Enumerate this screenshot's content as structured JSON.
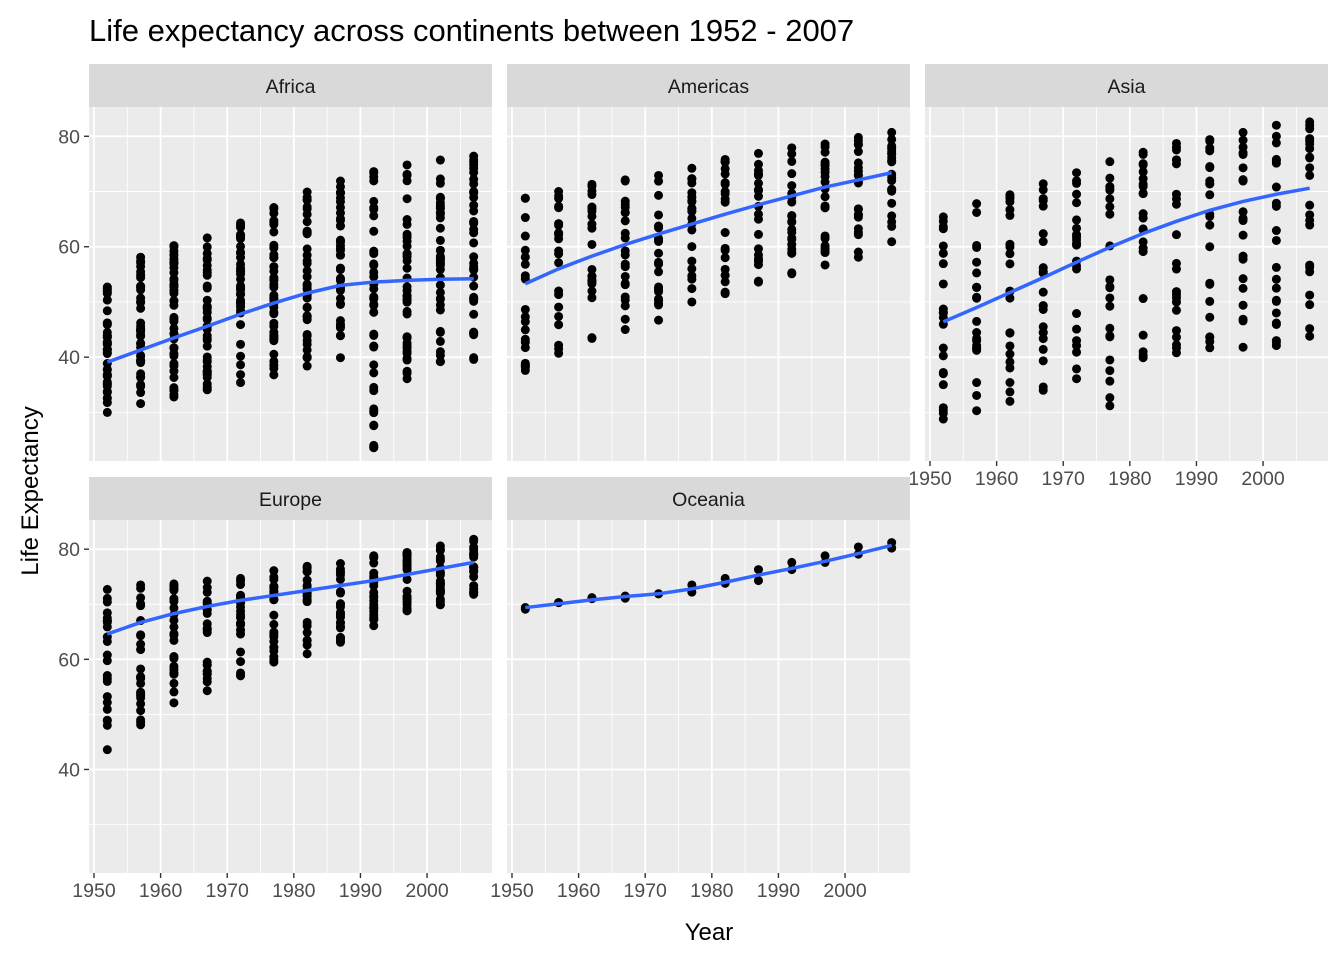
{
  "chart_data": {
    "type": "scatter",
    "title": "Life expectancy across continents between 1952 - 2007",
    "xlabel": "Year",
    "ylabel": "Life Expectancy",
    "xlim": [
      1949.25,
      2009.75
    ],
    "ylim": [
      21.2,
      85.3
    ],
    "x_ticks": [
      1950,
      1960,
      1970,
      1980,
      1990,
      2000
    ],
    "y_ticks": [
      40,
      60,
      80
    ],
    "grid": true,
    "legend": "none",
    "colors": {
      "point": "#000000",
      "smooth": "#3366FF",
      "panel_bg": "#EBEBEB",
      "strip_bg": "#D9D9D9",
      "grid": "#FFFFFF"
    },
    "x": [
      1952,
      1957,
      1962,
      1967,
      1972,
      1977,
      1982,
      1987,
      1992,
      1997,
      2002,
      2007
    ],
    "panels": [
      {
        "name": "Africa",
        "min": [
          30.0,
          31.6,
          32.8,
          34.1,
          35.4,
          36.8,
          38.4,
          39.9,
          23.6,
          36.1,
          39.2,
          39.6
        ],
        "max": [
          52.7,
          58.1,
          60.2,
          61.6,
          64.3,
          67.1,
          69.9,
          71.9,
          73.6,
          74.8,
          75.7,
          76.4
        ],
        "smooth": [
          39.1,
          41.3,
          43.5,
          45.6,
          47.8,
          49.8,
          51.6,
          53.0,
          53.6,
          53.9,
          54.1,
          54.2
        ]
      },
      {
        "name": "Americas",
        "min": [
          37.6,
          40.7,
          43.4,
          45.0,
          46.7,
          50.0,
          51.5,
          53.6,
          55.1,
          56.7,
          58.1,
          60.9
        ],
        "max": [
          68.8,
          70.0,
          71.3,
          72.1,
          72.9,
          74.2,
          75.8,
          76.9,
          77.9,
          78.6,
          79.8,
          80.7
        ],
        "smooth": [
          53.3,
          56.0,
          58.3,
          60.4,
          62.3,
          64.1,
          65.9,
          67.6,
          69.2,
          70.8,
          72.1,
          73.4
        ]
      },
      {
        "name": "Asia",
        "min": [
          28.8,
          30.3,
          32.0,
          34.0,
          36.1,
          31.2,
          39.9,
          40.8,
          41.7,
          41.8,
          42.1,
          43.8
        ],
        "max": [
          65.4,
          67.8,
          69.4,
          71.4,
          73.4,
          75.4,
          77.1,
          78.7,
          79.4,
          80.7,
          82.0,
          82.6
        ],
        "smooth": [
          46.4,
          49.0,
          51.7,
          54.4,
          57.2,
          59.9,
          62.4,
          64.6,
          66.6,
          68.2,
          69.5,
          70.6
        ]
      },
      {
        "name": "Europe",
        "min": [
          43.6,
          48.1,
          52.1,
          54.3,
          57.0,
          59.5,
          61.0,
          63.1,
          66.1,
          68.8,
          69.9,
          71.8
        ],
        "max": [
          72.7,
          73.5,
          73.7,
          74.2,
          74.7,
          76.1,
          76.9,
          77.4,
          78.8,
          79.4,
          80.6,
          81.8
        ],
        "smooth": [
          64.6,
          66.7,
          68.3,
          69.6,
          70.7,
          71.6,
          72.5,
          73.4,
          74.3,
          75.4,
          76.5,
          77.6
        ]
      },
      {
        "name": "Oceania",
        "min": [
          69.1,
          70.3,
          71.0,
          71.1,
          71.9,
          72.2,
          73.8,
          74.3,
          76.3,
          77.6,
          79.1,
          80.2
        ],
        "max": [
          69.4,
          70.3,
          71.2,
          71.5,
          71.9,
          73.5,
          74.7,
          76.3,
          77.6,
          78.8,
          80.4,
          81.2
        ],
        "smooth": [
          69.4,
          70.1,
          70.8,
          71.4,
          71.9,
          72.8,
          74.0,
          75.3,
          76.5,
          77.8,
          79.2,
          80.7
        ]
      }
    ]
  }
}
